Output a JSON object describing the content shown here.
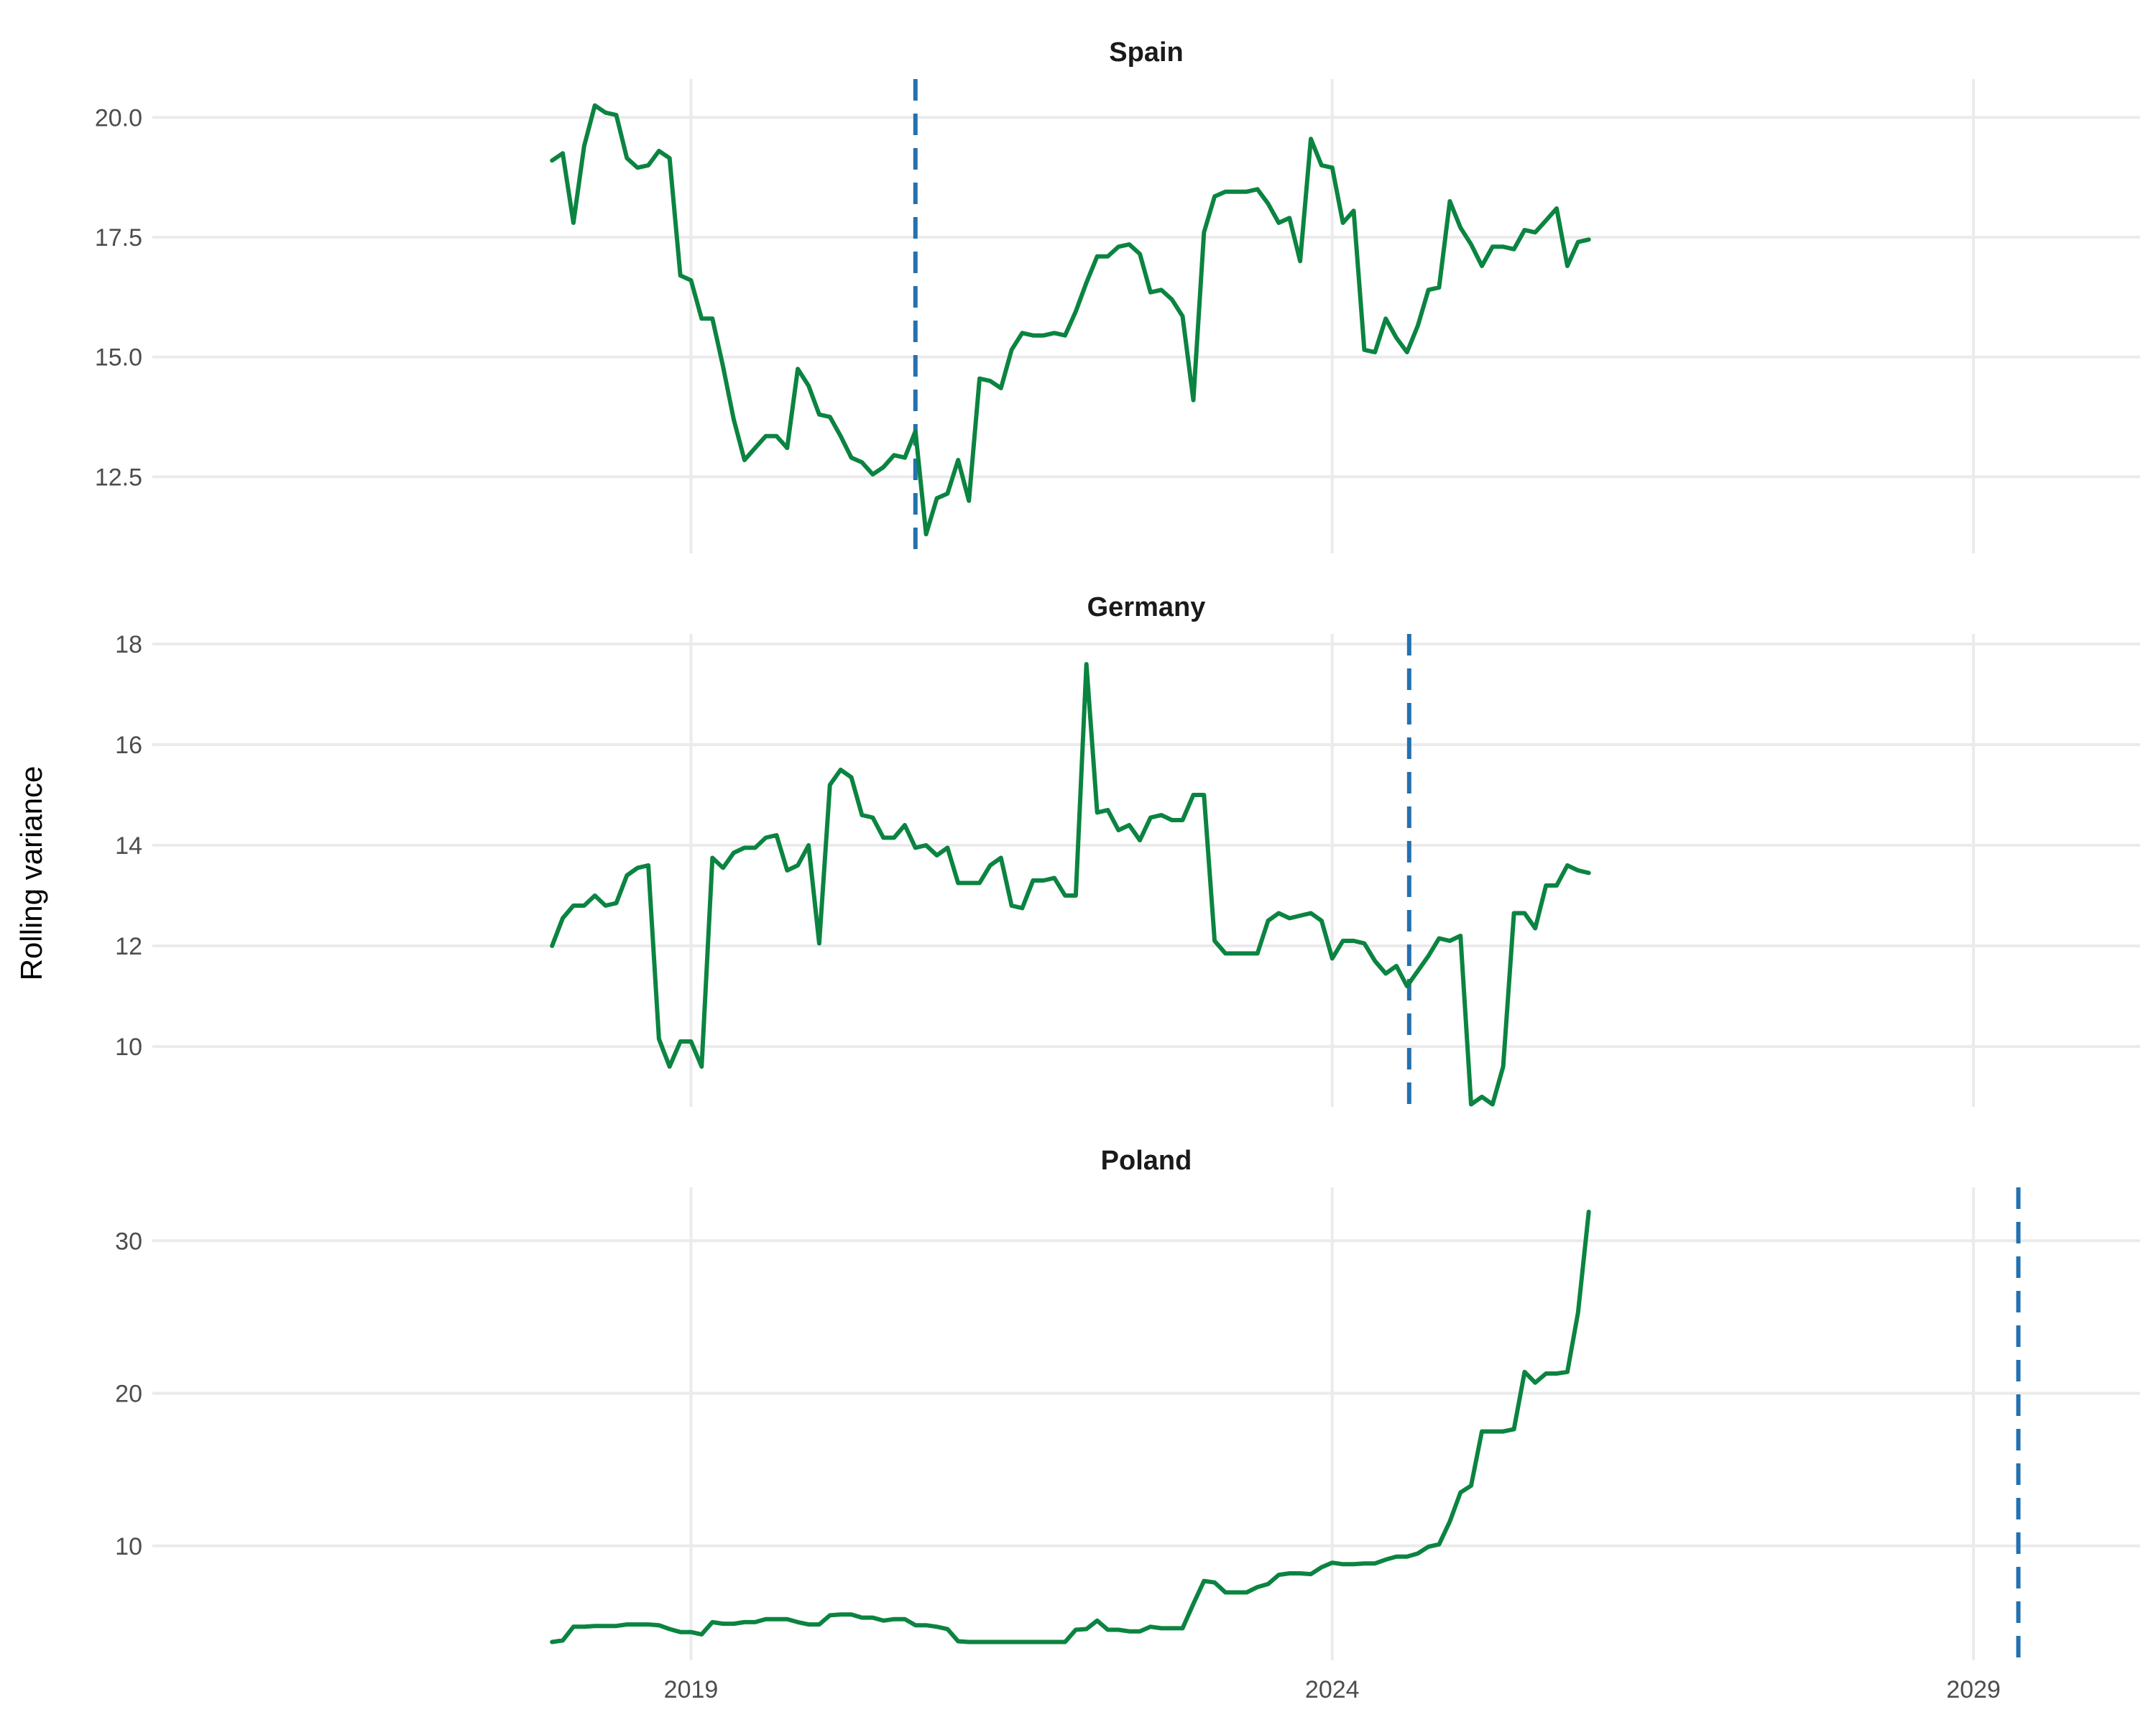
{
  "chart_data": {
    "type": "line",
    "ylabel": "Rolling variance",
    "xlim": [
      2014.8,
      2030.3
    ],
    "x_ticks": [
      2019,
      2024,
      2029
    ],
    "x_tick_labels": [
      "2019",
      "2024",
      "2029"
    ],
    "colors": {
      "line": "#0b8441",
      "vline": "#2471b0"
    },
    "grid": true,
    "panels": [
      {
        "title": "Spain",
        "ylim": [
          10.9,
          20.8
        ],
        "y_ticks": [
          12.5,
          15.0,
          17.5,
          20.0
        ],
        "y_tick_labels": [
          "12.5",
          "15.0",
          "17.5",
          "20.0"
        ],
        "vline_x": 2020.75,
        "x": [
          2017.917,
          2018.0,
          2018.083,
          2018.167,
          2018.25,
          2018.333,
          2018.417,
          2018.5,
          2018.583,
          2018.667,
          2018.75,
          2018.833,
          2018.917,
          2019.0,
          2019.083,
          2019.167,
          2019.25,
          2019.333,
          2019.417,
          2019.5,
          2019.583,
          2019.667,
          2019.75,
          2019.833,
          2019.917,
          2020.0,
          2020.083,
          2020.167,
          2020.25,
          2020.333,
          2020.417,
          2020.5,
          2020.583,
          2020.667,
          2020.75,
          2020.833,
          2020.917,
          2021.0,
          2021.083,
          2021.167,
          2021.25,
          2021.333,
          2021.417,
          2021.5,
          2021.583,
          2021.667,
          2021.75,
          2021.833,
          2021.917,
          2022.0,
          2022.083,
          2022.167,
          2022.25,
          2022.333,
          2022.417,
          2022.5,
          2022.583,
          2022.667,
          2022.75,
          2022.833,
          2022.917,
          2023.0,
          2023.083,
          2023.167,
          2023.25,
          2023.333,
          2023.417,
          2023.5,
          2023.583,
          2023.667,
          2023.75,
          2023.833,
          2023.917,
          2024.0,
          2024.083,
          2024.167,
          2024.25,
          2024.333,
          2024.417,
          2024.5,
          2024.583,
          2024.667,
          2024.75,
          2024.833,
          2024.917,
          2025.0,
          2025.083,
          2025.167,
          2025.25,
          2025.333,
          2025.417,
          2025.5,
          2025.583,
          2025.667,
          2025.75,
          2025.833,
          2025.917,
          2026.0
        ],
        "values": [
          19.1,
          19.25,
          17.8,
          19.4,
          20.25,
          20.1,
          20.05,
          19.15,
          18.95,
          19.0,
          19.3,
          19.15,
          16.7,
          16.6,
          15.8,
          15.8,
          14.8,
          13.7,
          12.85,
          13.1,
          13.35,
          13.35,
          13.1,
          14.75,
          14.4,
          13.8,
          13.75,
          13.35,
          12.9,
          12.8,
          12.55,
          12.7,
          12.95,
          12.9,
          13.45,
          11.3,
          12.05,
          12.15,
          12.85,
          12.0,
          14.55,
          14.5,
          14.35,
          15.15,
          15.5,
          15.45,
          15.45,
          15.5,
          15.45,
          15.95,
          16.55,
          17.1,
          17.1,
          17.3,
          17.35,
          17.15,
          16.35,
          16.4,
          16.2,
          15.85,
          14.1,
          17.6,
          18.35,
          18.45,
          18.45,
          18.45,
          18.5,
          18.2,
          17.8,
          17.9,
          17.0,
          19.55,
          19.0,
          18.95,
          17.8,
          18.05,
          15.15,
          15.1,
          15.8,
          15.4,
          15.1,
          15.65,
          16.4,
          16.45,
          18.25,
          17.7,
          17.35,
          16.9,
          17.3,
          17.3,
          17.25,
          17.65,
          17.6,
          17.85,
          18.1,
          16.9,
          17.4,
          17.45
        ]
      },
      {
        "title": "Germany",
        "ylim": [
          8.8,
          18.2
        ],
        "y_ticks": [
          10,
          12,
          14,
          16,
          18
        ],
        "y_tick_labels": [
          "10",
          "12",
          "14",
          "16",
          "18"
        ],
        "vline_x": 2024.6,
        "x": [
          2017.917,
          2018.0,
          2018.083,
          2018.167,
          2018.25,
          2018.333,
          2018.417,
          2018.5,
          2018.583,
          2018.667,
          2018.75,
          2018.833,
          2018.917,
          2019.0,
          2019.083,
          2019.167,
          2019.25,
          2019.333,
          2019.417,
          2019.5,
          2019.583,
          2019.667,
          2019.75,
          2019.833,
          2019.917,
          2020.0,
          2020.083,
          2020.167,
          2020.25,
          2020.333,
          2020.417,
          2020.5,
          2020.583,
          2020.667,
          2020.75,
          2020.833,
          2020.917,
          2021.0,
          2021.083,
          2021.167,
          2021.25,
          2021.333,
          2021.417,
          2021.5,
          2021.583,
          2021.667,
          2021.75,
          2021.833,
          2021.917,
          2022.0,
          2022.083,
          2022.167,
          2022.25,
          2022.333,
          2022.417,
          2022.5,
          2022.583,
          2022.667,
          2022.75,
          2022.833,
          2022.917,
          2023.0,
          2023.083,
          2023.167,
          2023.25,
          2023.333,
          2023.417,
          2023.5,
          2023.583,
          2023.667,
          2023.75,
          2023.833,
          2023.917,
          2024.0,
          2024.083,
          2024.167,
          2024.25,
          2024.333,
          2024.417,
          2024.5,
          2024.583,
          2024.667,
          2024.75,
          2024.833,
          2024.917,
          2025.0,
          2025.083,
          2025.167,
          2025.25,
          2025.333,
          2025.417,
          2025.5,
          2025.583,
          2025.667,
          2025.75,
          2025.833,
          2025.917,
          2026.0
        ],
        "values": [
          12.0,
          12.55,
          12.8,
          12.8,
          13.0,
          12.8,
          12.85,
          13.4,
          13.55,
          13.6,
          10.15,
          9.6,
          10.1,
          10.1,
          9.6,
          13.75,
          13.55,
          13.85,
          13.95,
          13.95,
          14.15,
          14.2,
          13.5,
          13.6,
          14.0,
          12.05,
          15.2,
          15.5,
          15.35,
          14.6,
          14.55,
          14.15,
          14.15,
          14.4,
          13.95,
          14.0,
          13.8,
          13.95,
          13.25,
          13.25,
          13.25,
          13.6,
          13.75,
          12.8,
          12.75,
          13.3,
          13.3,
          13.35,
          13.0,
          13.0,
          17.6,
          14.65,
          14.7,
          14.3,
          14.4,
          14.1,
          14.55,
          14.6,
          14.5,
          14.5,
          15.0,
          15.0,
          12.1,
          11.85,
          11.85,
          11.85,
          11.85,
          12.5,
          12.65,
          12.55,
          12.6,
          12.65,
          12.5,
          11.75,
          12.1,
          12.1,
          12.05,
          11.7,
          11.45,
          11.6,
          11.2,
          11.5,
          11.8,
          12.15,
          12.1,
          12.2,
          8.85,
          9.0,
          8.85,
          9.6,
          12.65,
          12.65,
          12.35,
          13.2,
          13.2,
          13.6,
          13.5,
          13.45
        ]
      },
      {
        "title": "Poland",
        "ylim": [
          2.5,
          33.5
        ],
        "y_ticks": [
          10,
          20,
          30
        ],
        "y_tick_labels": [
          "10",
          "20",
          "30"
        ],
        "vline_x": 2029.35,
        "x": [
          2017.917,
          2018.0,
          2018.083,
          2018.167,
          2018.25,
          2018.333,
          2018.417,
          2018.5,
          2018.583,
          2018.667,
          2018.75,
          2018.833,
          2018.917,
          2019.0,
          2019.083,
          2019.167,
          2019.25,
          2019.333,
          2019.417,
          2019.5,
          2019.583,
          2019.667,
          2019.75,
          2019.833,
          2019.917,
          2020.0,
          2020.083,
          2020.167,
          2020.25,
          2020.333,
          2020.417,
          2020.5,
          2020.583,
          2020.667,
          2020.75,
          2020.833,
          2020.917,
          2021.0,
          2021.083,
          2021.167,
          2021.25,
          2021.333,
          2021.417,
          2021.5,
          2021.583,
          2021.667,
          2021.75,
          2021.833,
          2021.917,
          2022.0,
          2022.083,
          2022.167,
          2022.25,
          2022.333,
          2022.417,
          2022.5,
          2022.583,
          2022.667,
          2022.75,
          2022.833,
          2022.917,
          2023.0,
          2023.083,
          2023.167,
          2023.25,
          2023.333,
          2023.417,
          2023.5,
          2023.583,
          2023.667,
          2023.75,
          2023.833,
          2023.917,
          2024.0,
          2024.083,
          2024.167,
          2024.25,
          2024.333,
          2024.417,
          2024.5,
          2024.583,
          2024.667,
          2024.75,
          2024.833,
          2024.917,
          2025.0,
          2025.083,
          2025.167,
          2025.25,
          2025.333,
          2025.417,
          2025.5,
          2025.583,
          2025.667,
          2025.75,
          2025.833,
          2025.917,
          2026.0
        ],
        "values": [
          3.7,
          3.8,
          4.7,
          4.7,
          4.75,
          4.75,
          4.75,
          4.85,
          4.85,
          4.85,
          4.8,
          4.55,
          4.35,
          4.35,
          4.2,
          5.0,
          4.9,
          4.9,
          5.0,
          5.0,
          5.2,
          5.2,
          5.2,
          5.0,
          4.85,
          4.85,
          5.45,
          5.5,
          5.5,
          5.3,
          5.3,
          5.1,
          5.2,
          5.2,
          4.8,
          4.8,
          4.7,
          4.55,
          3.75,
          3.7,
          3.7,
          3.7,
          3.7,
          3.7,
          3.7,
          3.7,
          3.7,
          3.7,
          3.7,
          4.5,
          4.55,
          5.1,
          4.5,
          4.5,
          4.4,
          4.4,
          4.7,
          4.6,
          4.6,
          4.6,
          6.2,
          7.7,
          7.6,
          6.95,
          6.95,
          6.95,
          7.3,
          7.5,
          8.1,
          8.2,
          8.2,
          8.15,
          8.6,
          8.9,
          8.8,
          8.8,
          8.85,
          8.85,
          9.1,
          9.3,
          9.3,
          9.5,
          9.95,
          10.1,
          11.6,
          13.5,
          13.95,
          17.5,
          17.5,
          17.5,
          17.65,
          21.4,
          20.7,
          21.3,
          21.3,
          21.4,
          25.3,
          31.9
        ]
      }
    ]
  }
}
